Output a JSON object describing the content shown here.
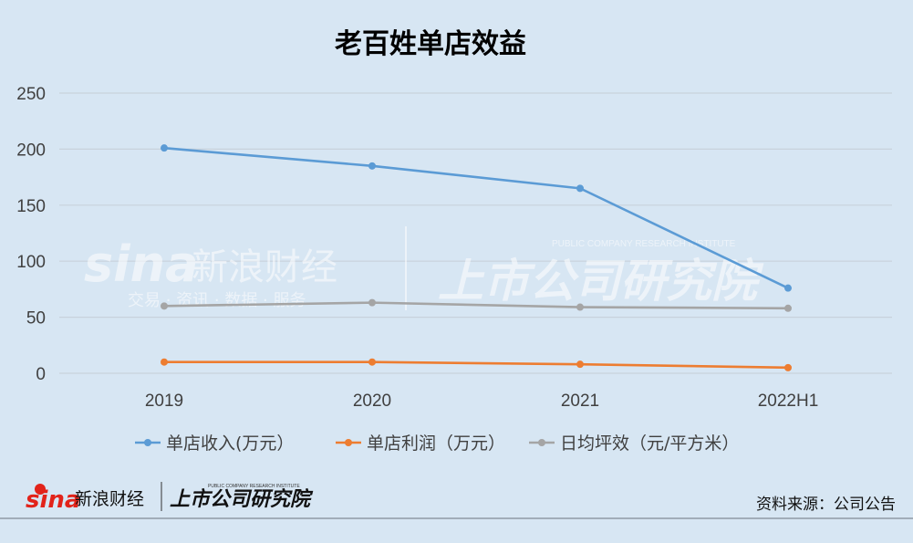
{
  "chart_data": {
    "type": "line",
    "title": "老百姓单店效益",
    "categories": [
      "2019",
      "2020",
      "2021",
      "2022H1"
    ],
    "ylim": [
      0,
      250
    ],
    "yticks": [
      0,
      50,
      100,
      150,
      200,
      250
    ],
    "grid": true,
    "legend_position": "bottom",
    "series": [
      {
        "name": "单店收入(万元）",
        "color": "#5b9bd5",
        "values": [
          201,
          185,
          165,
          76
        ]
      },
      {
        "name": "单店利润（万元）",
        "color": "#ed7d31",
        "values": [
          10,
          10,
          8,
          5
        ]
      },
      {
        "name": "日均坪效（元/平方米）",
        "color": "#a5a5a5",
        "values": [
          60,
          63,
          59,
          58
        ]
      }
    ]
  },
  "source": "资料来源：公司公告",
  "watermark": {
    "brand": "sina",
    "brand_cn": "新浪财经",
    "tagline": "交易 · 资讯 · 数据 · 服务",
    "institute": "上市公司研究院",
    "institute_en": "PUBLIC COMPANY RESEARCH INSTITUTE"
  },
  "footer_logo": {
    "brand": "sina",
    "brand_cn": "新浪财经",
    "institute": "上市公司研究院",
    "institute_en": "PUBLIC COMPANY RESEARCH INSTITUTE"
  }
}
